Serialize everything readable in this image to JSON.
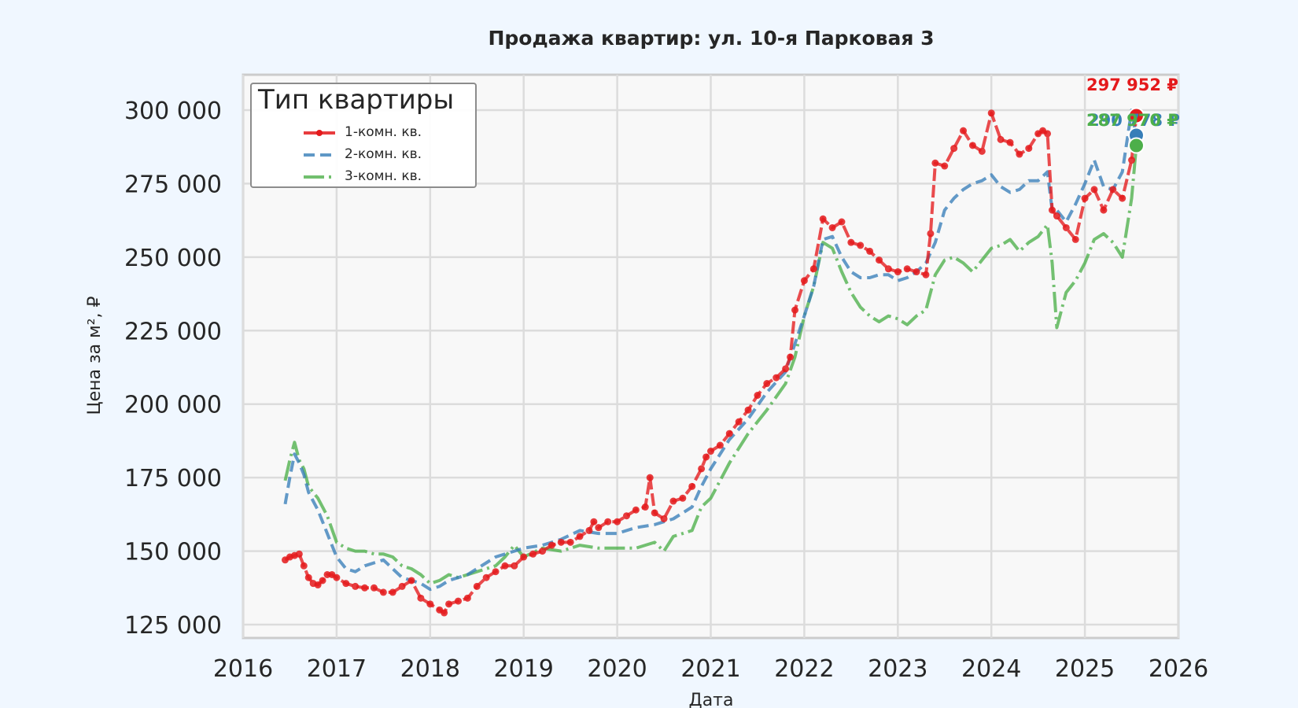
{
  "chart_data": {
    "type": "line",
    "title": "Продажа квартир: ул. 10-я Парковая 3",
    "xlabel": "Дата",
    "ylabel": "Цена за м², ₽",
    "xlim": [
      2016,
      2026
    ],
    "ylim": [
      121000,
      311000
    ],
    "x_ticks": [
      "2016",
      "2017",
      "2018",
      "2019",
      "2020",
      "2021",
      "2022",
      "2023",
      "2024",
      "2025",
      "2026"
    ],
    "y_ticks": [
      {
        "value": 125000,
        "label": "125 000"
      },
      {
        "value": 150000,
        "label": "150 000"
      },
      {
        "value": 175000,
        "label": "175 000"
      },
      {
        "value": 200000,
        "label": "200 000"
      },
      {
        "value": 225000,
        "label": "225 000"
      },
      {
        "value": 250000,
        "label": "250 000"
      },
      {
        "value": 275000,
        "label": "275 000"
      },
      {
        "value": 300000,
        "label": "300 000"
      }
    ],
    "grid": true,
    "legend": {
      "title": "Тип квартиры",
      "position": "upper left",
      "entries": [
        "1-комн. кв.",
        "2-комн. кв.",
        "3-комн. кв."
      ]
    },
    "series": [
      {
        "name": "1-комн. кв.",
        "color": "#e41a1c",
        "style": "solid-markers",
        "x": [
          2016.45,
          2016.5,
          2016.55,
          2016.6,
          2016.65,
          2016.7,
          2016.75,
          2016.8,
          2016.85,
          2016.9,
          2016.95,
          2017.0,
          2017.1,
          2017.2,
          2017.3,
          2017.4,
          2017.5,
          2017.6,
          2017.7,
          2017.8,
          2017.9,
          2018.0,
          2018.1,
          2018.15,
          2018.2,
          2018.3,
          2018.4,
          2018.5,
          2018.6,
          2018.7,
          2018.8,
          2018.9,
          2019.0,
          2019.1,
          2019.2,
          2019.3,
          2019.4,
          2019.5,
          2019.6,
          2019.7,
          2019.75,
          2019.8,
          2019.9,
          2020.0,
          2020.1,
          2020.2,
          2020.3,
          2020.35,
          2020.4,
          2020.5,
          2020.6,
          2020.7,
          2020.8,
          2020.9,
          2020.95,
          2021.0,
          2021.1,
          2021.2,
          2021.3,
          2021.4,
          2021.5,
          2021.6,
          2021.7,
          2021.8,
          2021.85,
          2021.9,
          2022.0,
          2022.1,
          2022.2,
          2022.3,
          2022.4,
          2022.5,
          2022.6,
          2022.7,
          2022.8,
          2022.9,
          2023.0,
          2023.1,
          2023.2,
          2023.3,
          2023.35,
          2023.4,
          2023.5,
          2023.6,
          2023.7,
          2023.8,
          2023.9,
          2024.0,
          2024.1,
          2024.2,
          2024.3,
          2024.4,
          2024.5,
          2024.55,
          2024.6,
          2024.65,
          2024.7,
          2024.8,
          2024.9,
          2025.0,
          2025.1,
          2025.2,
          2025.3,
          2025.4,
          2025.5,
          2025.55
        ],
        "values": [
          147000,
          148000,
          148500,
          149000,
          145000,
          141000,
          139000,
          138500,
          140000,
          142000,
          142000,
          141000,
          139000,
          138000,
          137500,
          137500,
          136000,
          136000,
          138000,
          140000,
          134000,
          132000,
          130000,
          129000,
          132000,
          133000,
          134000,
          138000,
          141000,
          143000,
          145000,
          145000,
          148000,
          149000,
          150000,
          152000,
          153000,
          153000,
          155000,
          157000,
          160000,
          158000,
          160000,
          160000,
          162000,
          164000,
          165000,
          175000,
          163000,
          161000,
          167000,
          168000,
          172000,
          178000,
          182000,
          184000,
          186000,
          190000,
          194000,
          198000,
          203000,
          207000,
          209000,
          212000,
          216000,
          232000,
          242000,
          246000,
          263000,
          260000,
          262000,
          255000,
          254000,
          252000,
          249000,
          246000,
          245000,
          246000,
          245000,
          244000,
          258000,
          282000,
          281000,
          287000,
          293000,
          288000,
          286000,
          299000,
          290000,
          289000,
          285000,
          287000,
          292000,
          293000,
          292000,
          266000,
          264000,
          260000,
          256000,
          270000,
          273000,
          266000,
          273000,
          270000,
          283000,
          297952
        ]
      },
      {
        "name": "2-комн. кв.",
        "color": "#377eb8",
        "style": "dashed",
        "x": [
          2016.45,
          2016.5,
          2016.55,
          2016.6,
          2016.65,
          2016.7,
          2016.8,
          2016.9,
          2017.0,
          2017.1,
          2017.2,
          2017.3,
          2017.4,
          2017.5,
          2017.6,
          2017.7,
          2017.8,
          2017.9,
          2018.0,
          2018.1,
          2018.2,
          2018.3,
          2018.4,
          2018.5,
          2018.6,
          2018.7,
          2018.8,
          2018.9,
          2019.0,
          2019.2,
          2019.4,
          2019.6,
          2019.8,
          2020.0,
          2020.2,
          2020.4,
          2020.6,
          2020.8,
          2020.9,
          2021.0,
          2021.2,
          2021.4,
          2021.6,
          2021.8,
          2022.0,
          2022.1,
          2022.2,
          2022.3,
          2022.4,
          2022.5,
          2022.6,
          2022.7,
          2022.8,
          2022.9,
          2023.0,
          2023.1,
          2023.2,
          2023.3,
          2023.4,
          2023.5,
          2023.6,
          2023.7,
          2023.8,
          2023.9,
          2024.0,
          2024.1,
          2024.2,
          2024.3,
          2024.4,
          2024.5,
          2024.6,
          2024.65,
          2024.7,
          2024.8,
          2024.9,
          2025.0,
          2025.1,
          2025.2,
          2025.3,
          2025.4,
          2025.5,
          2025.55
        ],
        "values": [
          166000,
          175000,
          183000,
          180000,
          176000,
          170000,
          164000,
          156000,
          148000,
          144000,
          143000,
          145000,
          146000,
          147000,
          144000,
          141000,
          140000,
          139000,
          137000,
          138000,
          140000,
          141000,
          142000,
          144000,
          146000,
          148000,
          149000,
          150000,
          151000,
          152000,
          154000,
          157000,
          156000,
          156000,
          158000,
          159000,
          161000,
          165000,
          172000,
          178000,
          188000,
          195000,
          204000,
          211000,
          230000,
          240000,
          256000,
          257000,
          250000,
          245000,
          243000,
          243000,
          244000,
          244000,
          242000,
          243000,
          245000,
          248000,
          255000,
          266000,
          270000,
          273000,
          275000,
          276000,
          278000,
          274000,
          272000,
          273000,
          276000,
          276000,
          279000,
          266000,
          266000,
          262000,
          268000,
          275000,
          283000,
          274000,
          273000,
          279000,
          300000,
          290778
        ]
      },
      {
        "name": "3-комн. кв.",
        "color": "#4daf4a",
        "style": "dashdot",
        "x": [
          2016.45,
          2016.5,
          2016.55,
          2016.6,
          2016.65,
          2016.7,
          2016.8,
          2016.9,
          2017.0,
          2017.1,
          2017.2,
          2017.3,
          2017.4,
          2017.5,
          2017.6,
          2017.7,
          2017.8,
          2017.9,
          2018.0,
          2018.1,
          2018.2,
          2018.3,
          2018.4,
          2018.5,
          2018.6,
          2018.7,
          2018.8,
          2018.9,
          2019.0,
          2019.2,
          2019.4,
          2019.6,
          2019.8,
          2020.0,
          2020.2,
          2020.4,
          2020.5,
          2020.6,
          2020.8,
          2020.9,
          2021.0,
          2021.2,
          2021.4,
          2021.6,
          2021.8,
          2021.9,
          2022.0,
          2022.1,
          2022.2,
          2022.3,
          2022.4,
          2022.5,
          2022.6,
          2022.7,
          2022.8,
          2022.9,
          2023.0,
          2023.1,
          2023.2,
          2023.3,
          2023.4,
          2023.5,
          2023.6,
          2023.7,
          2023.8,
          2023.9,
          2024.0,
          2024.1,
          2024.2,
          2024.3,
          2024.4,
          2024.5,
          2024.6,
          2024.65,
          2024.7,
          2024.8,
          2024.9,
          2025.0,
          2025.1,
          2025.2,
          2025.3,
          2025.4,
          2025.5,
          2025.55
        ],
        "values": [
          174000,
          181000,
          187000,
          181000,
          178000,
          172000,
          168000,
          162000,
          153000,
          151000,
          150000,
          150000,
          149000,
          149000,
          148000,
          145000,
          144000,
          142000,
          139000,
          140000,
          142000,
          141000,
          142000,
          143000,
          144000,
          145000,
          148000,
          152000,
          148000,
          151000,
          150000,
          152000,
          151000,
          151000,
          151000,
          153000,
          150000,
          155000,
          157000,
          165000,
          168000,
          180000,
          190000,
          198000,
          207000,
          216000,
          230000,
          240000,
          255000,
          253000,
          245000,
          238000,
          233000,
          230000,
          228000,
          230000,
          229000,
          227000,
          230000,
          232000,
          244000,
          249000,
          250000,
          248000,
          245000,
          249000,
          253000,
          254000,
          256000,
          252000,
          255000,
          257000,
          261000,
          248000,
          226000,
          238000,
          242000,
          248000,
          256000,
          258000,
          255000,
          250000,
          270000,
          287970
        ]
      }
    ],
    "annotations": [
      {
        "text": "297 952 ₽",
        "series": "1-комн. кв.",
        "color": "#e41a1c",
        "x": 2025.55,
        "y": 297952
      },
      {
        "text": "290 778 ₽",
        "series": "2-комн. кв.",
        "color": "#377eb8",
        "x": 2025.55,
        "y": 290778
      },
      {
        "text": "287 970 ₽",
        "series": "3-комн. кв.",
        "color": "#4daf4a",
        "x": 2025.55,
        "y": 287970
      }
    ]
  }
}
